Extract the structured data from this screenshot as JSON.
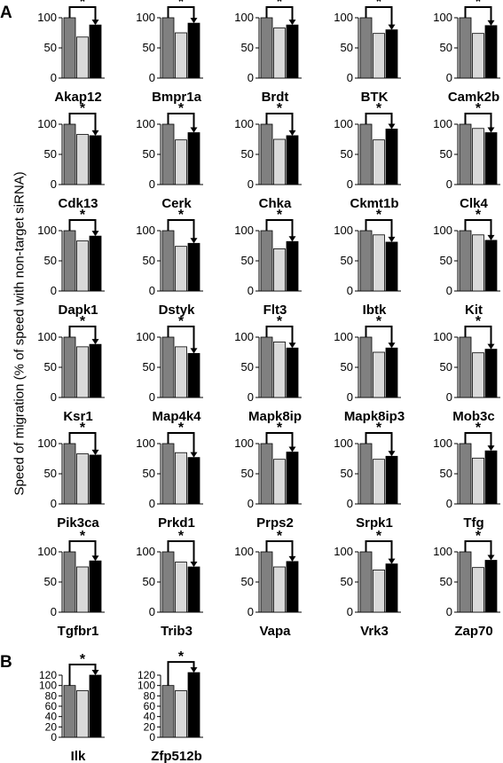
{
  "panel_labels": {
    "a": "A",
    "b": "B"
  },
  "ylabel": "Speed of migration  (% of speed with non-target siRNA)",
  "colors": {
    "control": "#808080",
    "sirna1": "#d9d9d9",
    "sirna2": "#000000"
  },
  "chart_data": [
    {
      "type": "bar",
      "panel": "A",
      "title": "Akap12",
      "categories": [
        "1",
        "2",
        "3"
      ],
      "values": [
        100,
        68,
        88
      ],
      "significance": "*",
      "ylim": [
        0,
        100
      ],
      "yticks": [
        "100",
        "50",
        "0"
      ]
    },
    {
      "type": "bar",
      "panel": "A",
      "title": "Bmpr1a",
      "categories": [
        "1",
        "2",
        "3"
      ],
      "values": [
        100,
        75,
        91
      ],
      "significance": "*",
      "ylim": [
        0,
        100
      ],
      "yticks": [
        "100",
        "50",
        "0"
      ]
    },
    {
      "type": "bar",
      "panel": "A",
      "title": "Brdt",
      "categories": [
        "1",
        "2",
        "3"
      ],
      "values": [
        100,
        83,
        88
      ],
      "significance": "*",
      "ylim": [
        0,
        100
      ],
      "yticks": [
        "100",
        "50",
        "0"
      ]
    },
    {
      "type": "bar",
      "panel": "A",
      "title": "BTK",
      "categories": [
        "1",
        "2",
        "3"
      ],
      "values": [
        100,
        74,
        80
      ],
      "significance": "*",
      "ylim": [
        0,
        100
      ],
      "yticks": [
        "100",
        "50",
        "0"
      ]
    },
    {
      "type": "bar",
      "panel": "A",
      "title": "Camk2b",
      "categories": [
        "1",
        "2",
        "3"
      ],
      "values": [
        100,
        74,
        87
      ],
      "significance": "*",
      "ylim": [
        0,
        100
      ],
      "yticks": [
        "100",
        "50",
        "0"
      ]
    },
    {
      "type": "bar",
      "panel": "A",
      "title": "Cdk13",
      "categories": [
        "1",
        "2",
        "3"
      ],
      "values": [
        100,
        83,
        81
      ],
      "significance": "*",
      "ylim": [
        0,
        100
      ],
      "yticks": [
        "100",
        "50",
        "0"
      ]
    },
    {
      "type": "bar",
      "panel": "A",
      "title": "Cerk",
      "categories": [
        "1",
        "2",
        "3"
      ],
      "values": [
        100,
        74,
        86
      ],
      "significance": "*",
      "ylim": [
        0,
        100
      ],
      "yticks": [
        "100",
        "50",
        "0"
      ]
    },
    {
      "type": "bar",
      "panel": "A",
      "title": "Chka",
      "categories": [
        "1",
        "2",
        "3"
      ],
      "values": [
        100,
        75,
        81
      ],
      "significance": "*",
      "ylim": [
        0,
        100
      ],
      "yticks": [
        "100",
        "50",
        "0"
      ]
    },
    {
      "type": "bar",
      "panel": "A",
      "title": "Ckmt1b",
      "categories": [
        "1",
        "2",
        "3"
      ],
      "values": [
        100,
        74,
        92
      ],
      "significance": "*",
      "ylim": [
        0,
        100
      ],
      "yticks": [
        "100",
        "50",
        "0"
      ]
    },
    {
      "type": "bar",
      "panel": "A",
      "title": "Clk4",
      "categories": [
        "1",
        "2",
        "3"
      ],
      "values": [
        100,
        93,
        86
      ],
      "significance": "*",
      "ylim": [
        0,
        100
      ],
      "yticks": [
        "100",
        "50",
        "0"
      ]
    },
    {
      "type": "bar",
      "panel": "A",
      "title": "Dapk1",
      "categories": [
        "1",
        "2",
        "3"
      ],
      "values": [
        100,
        83,
        91
      ],
      "significance": "*",
      "ylim": [
        0,
        100
      ],
      "yticks": [
        "100",
        "50",
        "0"
      ]
    },
    {
      "type": "bar",
      "panel": "A",
      "title": "Dstyk",
      "categories": [
        "1",
        "2",
        "3"
      ],
      "values": [
        100,
        74,
        79
      ],
      "significance": "*",
      "ylim": [
        0,
        100
      ],
      "yticks": [
        "100",
        "50",
        "0"
      ]
    },
    {
      "type": "bar",
      "panel": "A",
      "title": "Flt3",
      "categories": [
        "1",
        "2",
        "3"
      ],
      "values": [
        100,
        70,
        82
      ],
      "significance": "*",
      "ylim": [
        0,
        100
      ],
      "yticks": [
        "100",
        "50",
        "0"
      ]
    },
    {
      "type": "bar",
      "panel": "A",
      "title": "Ibtk",
      "categories": [
        "1",
        "2",
        "3"
      ],
      "values": [
        100,
        93,
        81
      ],
      "significance": "*",
      "ylim": [
        0,
        100
      ],
      "yticks": [
        "100",
        "50",
        "0"
      ]
    },
    {
      "type": "bar",
      "panel": "A",
      "title": "Kit",
      "categories": [
        "1",
        "2",
        "3"
      ],
      "values": [
        100,
        93,
        84
      ],
      "significance": "*",
      "ylim": [
        0,
        100
      ],
      "yticks": [
        "100",
        "50",
        "0"
      ]
    },
    {
      "type": "bar",
      "panel": "A",
      "title": "Ksr1",
      "categories": [
        "1",
        "2",
        "3"
      ],
      "values": [
        100,
        84,
        88
      ],
      "significance": "*",
      "ylim": [
        0,
        100
      ],
      "yticks": [
        "100",
        "50",
        "0"
      ]
    },
    {
      "type": "bar",
      "panel": "A",
      "title": "Map4k4",
      "categories": [
        "1",
        "2",
        "3"
      ],
      "values": [
        100,
        84,
        73
      ],
      "significance": "*",
      "ylim": [
        0,
        100
      ],
      "yticks": [
        "100",
        "50",
        "0"
      ]
    },
    {
      "type": "bar",
      "panel": "A",
      "title": "Mapk8ip",
      "categories": [
        "1",
        "2",
        "3"
      ],
      "values": [
        100,
        92,
        82
      ],
      "significance": "*",
      "ylim": [
        0,
        100
      ],
      "yticks": [
        "100",
        "50",
        "0"
      ]
    },
    {
      "type": "bar",
      "panel": "A",
      "title": "Mapk8ip3",
      "categories": [
        "1",
        "2",
        "3"
      ],
      "values": [
        100,
        75,
        82
      ],
      "significance": "*",
      "ylim": [
        0,
        100
      ],
      "yticks": [
        "100",
        "50",
        "0"
      ]
    },
    {
      "type": "bar",
      "panel": "A",
      "title": "Mob3c",
      "categories": [
        "1",
        "2",
        "3"
      ],
      "values": [
        100,
        74,
        80
      ],
      "significance": "*",
      "ylim": [
        0,
        100
      ],
      "yticks": [
        "100",
        "50",
        "0"
      ]
    },
    {
      "type": "bar",
      "panel": "A",
      "title": "Pik3ca",
      "categories": [
        "1",
        "2",
        "3"
      ],
      "values": [
        100,
        83,
        81
      ],
      "significance": "*",
      "ylim": [
        0,
        100
      ],
      "yticks": [
        "100",
        "50",
        "0"
      ]
    },
    {
      "type": "bar",
      "panel": "A",
      "title": "Prkd1",
      "categories": [
        "1",
        "2",
        "3"
      ],
      "values": [
        100,
        85,
        77
      ],
      "significance": "*",
      "ylim": [
        0,
        100
      ],
      "yticks": [
        "100",
        "50",
        "0"
      ]
    },
    {
      "type": "bar",
      "panel": "A",
      "title": "Prps2",
      "categories": [
        "1",
        "2",
        "3"
      ],
      "values": [
        100,
        74,
        86
      ],
      "significance": "*",
      "ylim": [
        0,
        100
      ],
      "yticks": [
        "100",
        "50",
        "0"
      ]
    },
    {
      "type": "bar",
      "panel": "A",
      "title": "Srpk1",
      "categories": [
        "1",
        "2",
        "3"
      ],
      "values": [
        100,
        74,
        79
      ],
      "significance": "*",
      "ylim": [
        0,
        100
      ],
      "yticks": [
        "100",
        "50",
        "0"
      ]
    },
    {
      "type": "bar",
      "panel": "A",
      "title": "Tfg",
      "categories": [
        "1",
        "2",
        "3"
      ],
      "values": [
        100,
        76,
        88
      ],
      "significance": "*",
      "ylim": [
        0,
        100
      ],
      "yticks": [
        "100",
        "50",
        "0"
      ]
    },
    {
      "type": "bar",
      "panel": "A",
      "title": "Tgfbr1",
      "categories": [
        "1",
        "2",
        "3"
      ],
      "values": [
        100,
        75,
        85
      ],
      "significance": "*",
      "ylim": [
        0,
        100
      ],
      "yticks": [
        "100",
        "50",
        "0"
      ]
    },
    {
      "type": "bar",
      "panel": "A",
      "title": "Trib3",
      "categories": [
        "1",
        "2",
        "3"
      ],
      "values": [
        100,
        83,
        75
      ],
      "significance": "*",
      "ylim": [
        0,
        100
      ],
      "yticks": [
        "100",
        "50",
        "0"
      ]
    },
    {
      "type": "bar",
      "panel": "A",
      "title": "Vapa",
      "categories": [
        "1",
        "2",
        "3"
      ],
      "values": [
        100,
        75,
        84
      ],
      "significance": "*",
      "ylim": [
        0,
        100
      ],
      "yticks": [
        "100",
        "50",
        "0"
      ]
    },
    {
      "type": "bar",
      "panel": "A",
      "title": "Vrk3",
      "categories": [
        "1",
        "2",
        "3"
      ],
      "values": [
        100,
        70,
        80
      ],
      "significance": "*",
      "ylim": [
        0,
        100
      ],
      "yticks": [
        "100",
        "50",
        "0"
      ]
    },
    {
      "type": "bar",
      "panel": "A",
      "title": "Zap70",
      "categories": [
        "1",
        "2",
        "3"
      ],
      "values": [
        100,
        74,
        86
      ],
      "significance": "*",
      "ylim": [
        0,
        100
      ],
      "yticks": [
        "100",
        "50",
        "0"
      ]
    },
    {
      "type": "bar",
      "panel": "B",
      "title": "Ilk",
      "categories": [
        "1",
        "2",
        "3"
      ],
      "values": [
        100,
        90,
        120
      ],
      "significance": "*",
      "ylim": [
        0,
        120
      ],
      "yticks": [
        "120",
        "100",
        "80",
        "60",
        "40",
        "20",
        "0"
      ]
    },
    {
      "type": "bar",
      "panel": "B",
      "title": "Zfp512b",
      "categories": [
        "1",
        "2",
        "3"
      ],
      "values": [
        100,
        90,
        125
      ],
      "significance": "*",
      "ylim": [
        0,
        120
      ],
      "yticks": [
        "120",
        "100",
        "80",
        "60",
        "40",
        "20",
        "0"
      ]
    }
  ]
}
